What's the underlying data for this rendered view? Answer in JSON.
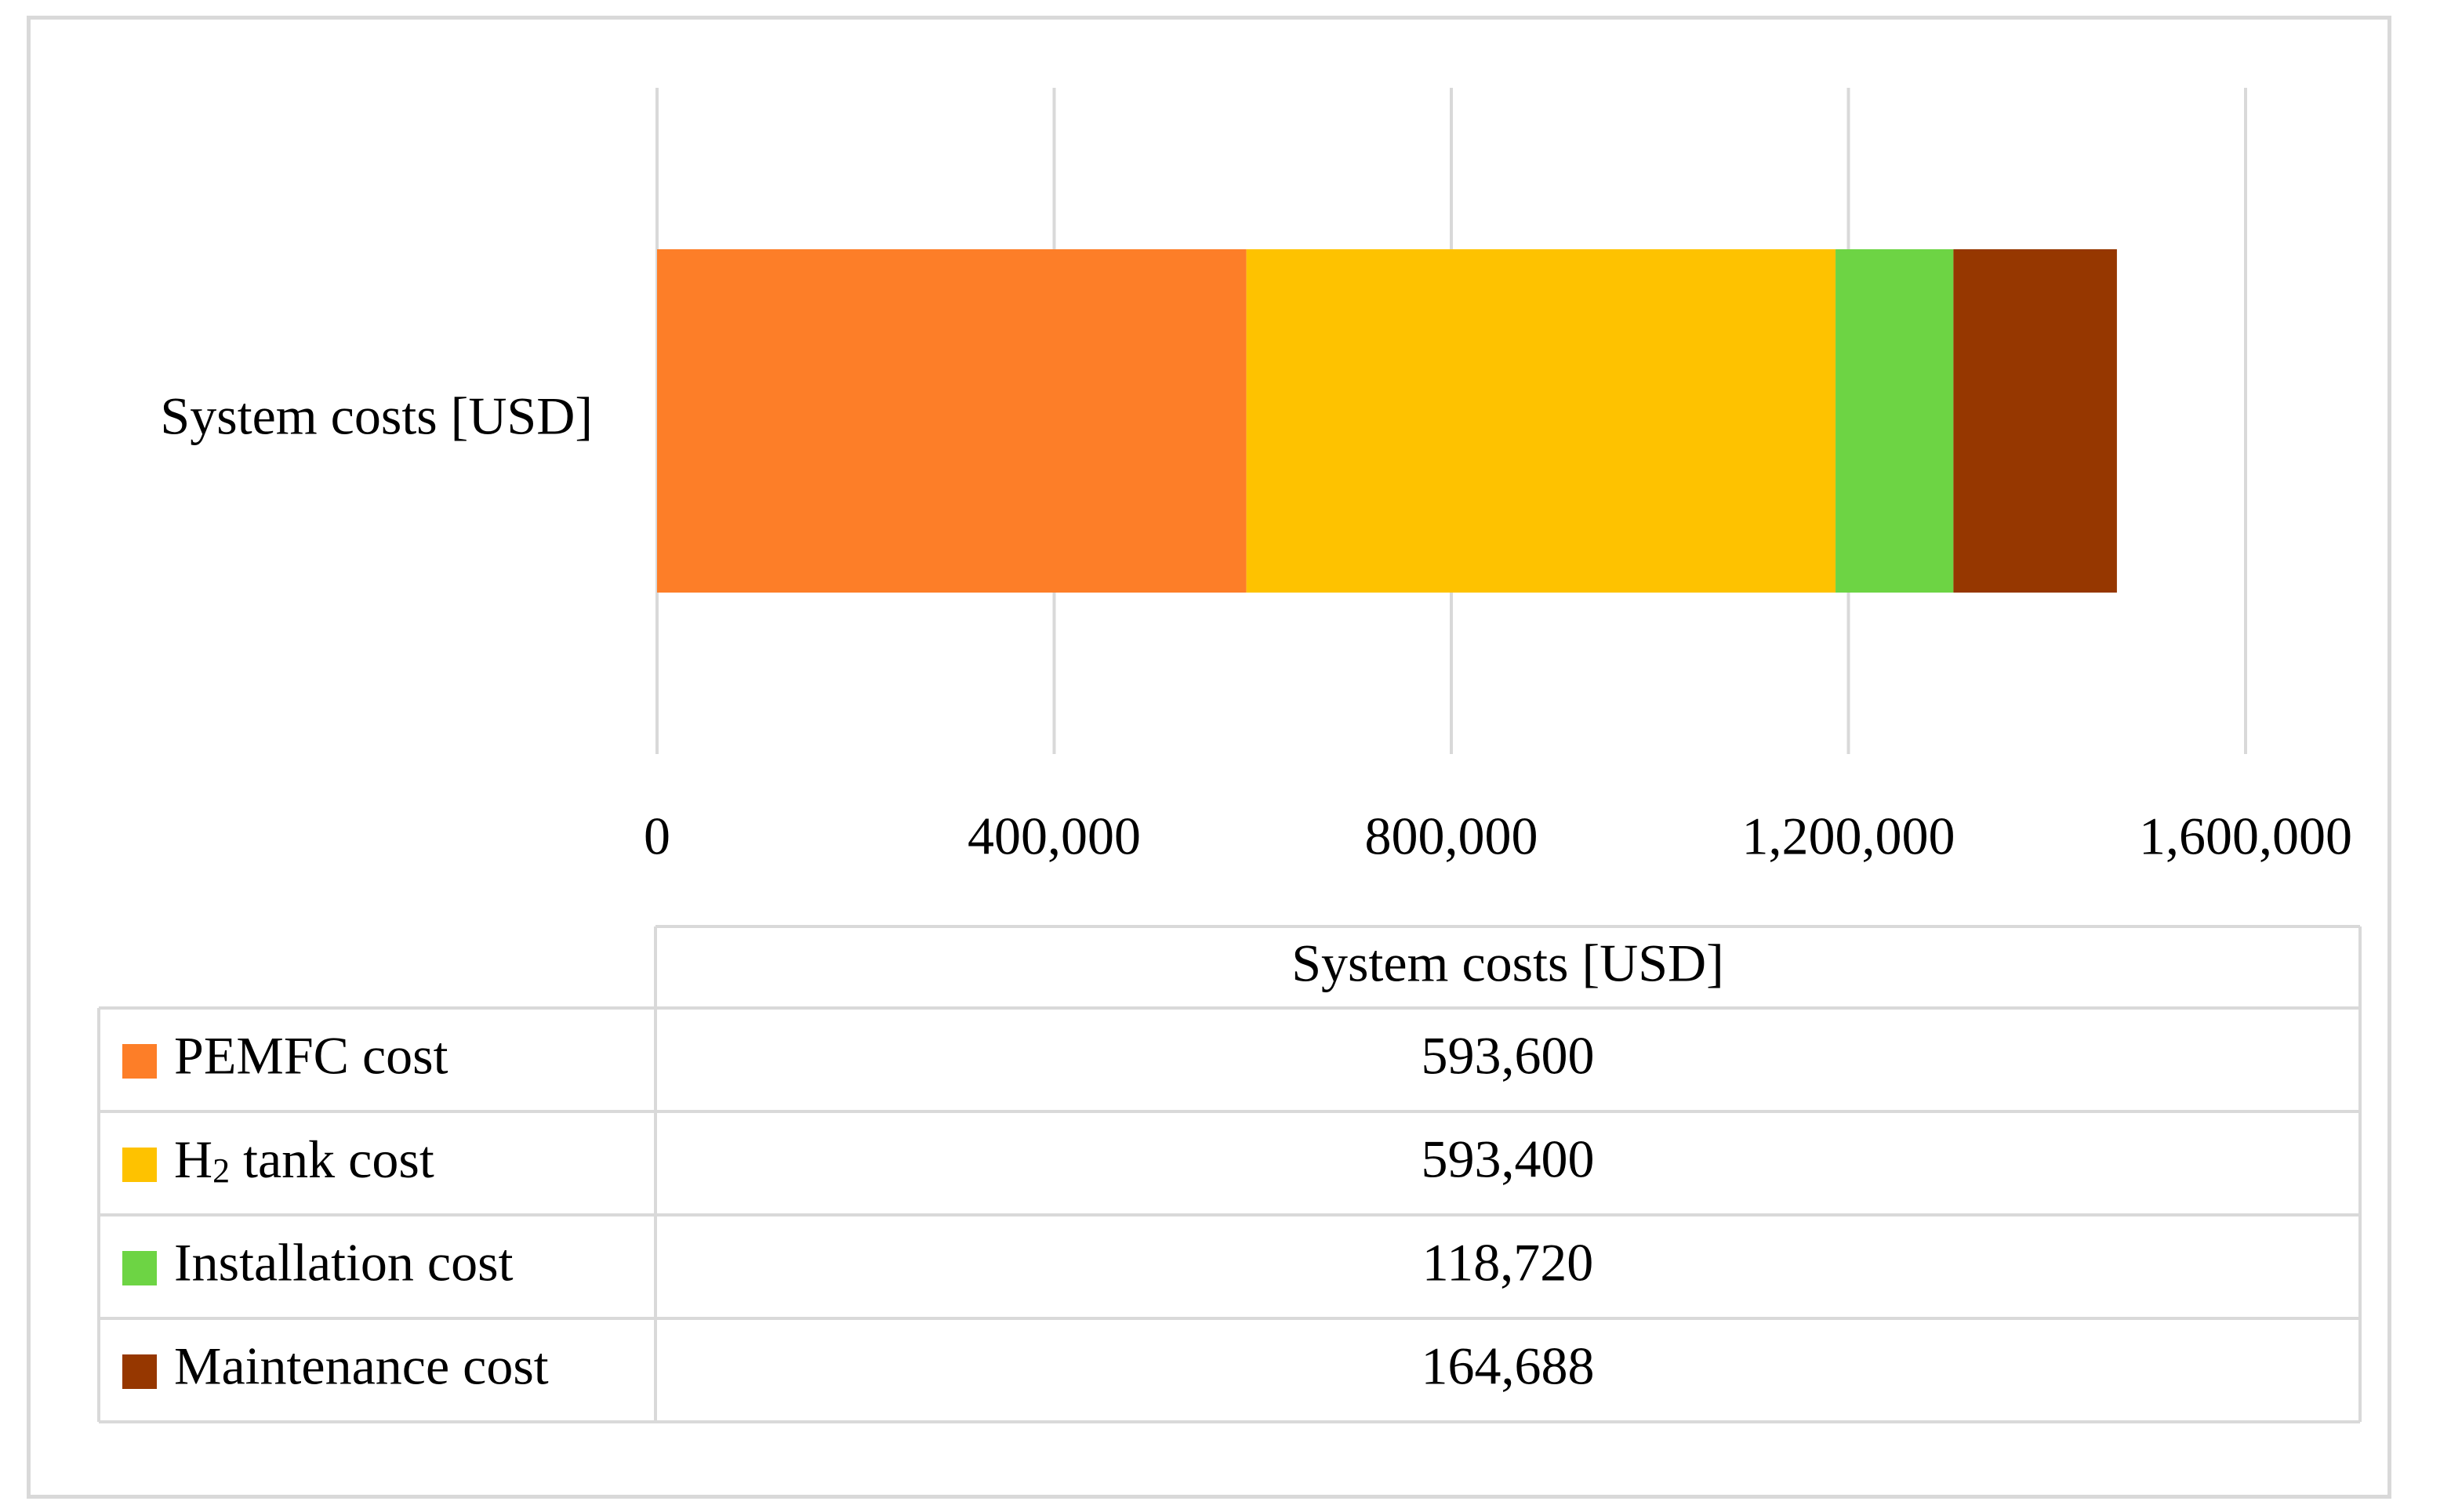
{
  "chart_data": {
    "type": "bar",
    "orientation": "horizontal",
    "stacked": true,
    "categories": [
      "System costs [USD]"
    ],
    "series": [
      {
        "name": "PEMFC cost",
        "values": [
          593600
        ],
        "label": "593,600",
        "color": "#FD7E28"
      },
      {
        "name": "H2 tank cost",
        "name_main": "H",
        "name_sub": "2",
        "name_rest": " tank cost",
        "values": [
          593400
        ],
        "label": "593,400",
        "color": "#FEC200"
      },
      {
        "name": "Installation cost",
        "values": [
          118720
        ],
        "label": "118,720",
        "color": "#6DD444"
      },
      {
        "name": "Maintenance cost",
        "values": [
          164688
        ],
        "label": "164,688",
        "color": "#963700"
      }
    ],
    "xlim": [
      0,
      1600000
    ],
    "xticks": [
      0,
      400000,
      800000,
      1200000,
      1600000
    ],
    "xtick_labels": [
      "0",
      "400,000",
      "800,000",
      "1,200,000",
      "1,600,000"
    ],
    "grid": true,
    "legend": "data-table-below",
    "table_header": "System costs [USD]",
    "title": "",
    "xlabel": "",
    "ylabel": ""
  }
}
